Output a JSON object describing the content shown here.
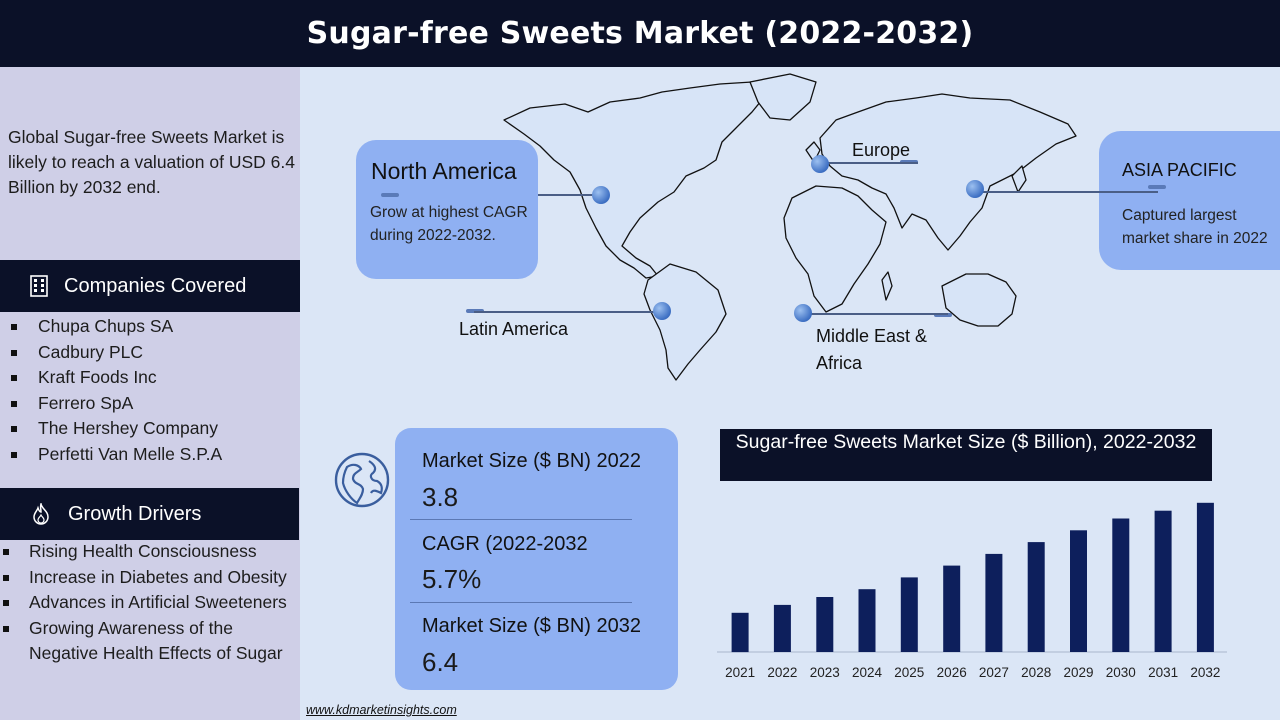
{
  "header": {
    "title": "Sugar-free Sweets Market (2022-2032)"
  },
  "sidebar": {
    "summary": "Global Sugar-free Sweets Market is likely to reach a valuation of USD 6.4 Billion by 2032 end.",
    "companies_heading": "Companies Covered",
    "companies_icon": "building-icon",
    "companies": [
      "Chupa Chups SA",
      "Cadbury PLC",
      "Kraft Foods Inc",
      "Ferrero SpA",
      "The Hershey Company",
      "Perfetti Van Melle S.P.A"
    ],
    "drivers_heading": "Growth Drivers",
    "drivers_icon": "flame-icon",
    "drivers": [
      "Rising Health Consciousness",
      "Increase in Diabetes and Obesity",
      "Advances in Artificial Sweeteners",
      "Growing Awareness of the Negative Health Effects of Sugar"
    ]
  },
  "regions": {
    "north_america": {
      "title": "North America",
      "text": "Grow at highest CAGR during 2022-2032."
    },
    "europe": {
      "title": "Europe"
    },
    "asia_pacific": {
      "title": "ASIA PACIFIC",
      "text": "Captured largest market share in 2022"
    },
    "latin_america": {
      "title": "Latin America"
    },
    "mea": {
      "title": "Middle East & Africa"
    }
  },
  "stats": {
    "size_2022_label": "Market Size ($ BN) 2022",
    "size_2022_value": "3.8",
    "cagr_label": "CAGR (2022-2032",
    "cagr_value": "5.7%",
    "size_2032_label": "Market Size ($ BN) 2032",
    "size_2032_value": "6.4"
  },
  "footer": {
    "link": "www.kdmarketinsights.com"
  },
  "colors": {
    "navy": "#0b1128",
    "bar": "#0d1f5c",
    "panel_blue": "#8fb0f2",
    "sidebar": "#cfcfe7",
    "background": "#dbe6f6"
  },
  "chart_data": {
    "type": "bar",
    "title": "Sugar-free Sweets Market Size ($ Billion), 2022-2032",
    "categories": [
      "2021",
      "2022",
      "2023",
      "2024",
      "2025",
      "2026",
      "2027",
      "2028",
      "2029",
      "2030",
      "2031",
      "2032"
    ],
    "values": [
      3.6,
      3.8,
      4.0,
      4.2,
      4.5,
      4.8,
      5.1,
      5.4,
      5.7,
      6.0,
      6.2,
      6.4
    ],
    "ylim": [
      2.6,
      6.6
    ],
    "grid": false,
    "legend": "none"
  }
}
